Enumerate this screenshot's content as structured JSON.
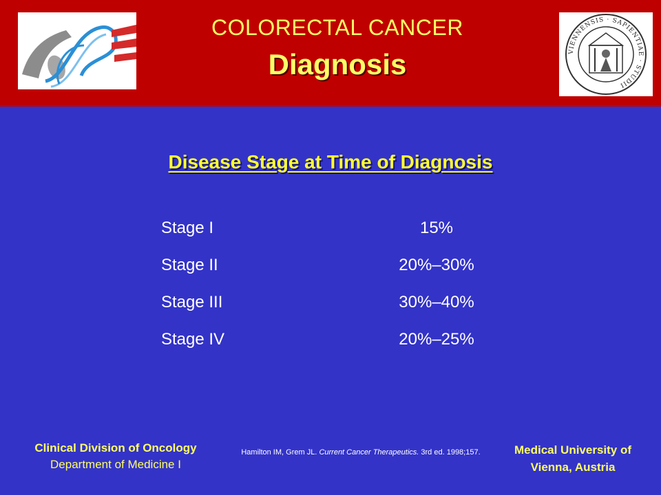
{
  "header": {
    "title_line1": "COLORECTAL CANCER",
    "title_line2": "Diagnosis"
  },
  "slide": {
    "subtitle": "Disease Stage at Time of Diagnosis",
    "stages": [
      {
        "label": "Stage I",
        "value": "15%"
      },
      {
        "label": "Stage II",
        "value": "20%–30%"
      },
      {
        "label": "Stage III",
        "value": "30%–40%"
      },
      {
        "label": "Stage IV",
        "value": "20%–25%"
      }
    ]
  },
  "footer": {
    "left_line1": "Clinical Division of Oncology",
    "left_line2": "Department of Medicine I",
    "citation_authors": "Hamilton IM, Grem JL.",
    "citation_title": "Current Cancer Therapeutics.",
    "citation_rest": "3rd ed. 1998;157.",
    "right_line1": "Medical University of",
    "right_line2": "Vienna, Austria"
  },
  "seal_text": "VIENNENSIS · SAPIENTIAE · STUDII",
  "colors": {
    "header_bg": "#bf0000",
    "slide_bg": "#3333c8",
    "accent_yellow": "#ffff66"
  }
}
